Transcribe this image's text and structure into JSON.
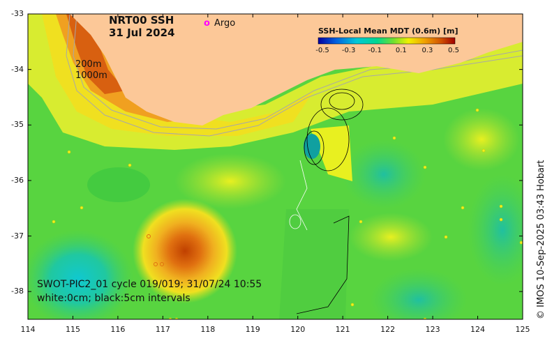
{
  "title": {
    "line1": "NRT00 SSH",
    "line2": "31 Jul 2024"
  },
  "legend": {
    "argo_symbol": "o",
    "argo_label": "Argo",
    "argo_color": "#ff00ff"
  },
  "depth_labels": [
    "200m",
    "1000m"
  ],
  "colorbar": {
    "title": "SSH-Local Mean MDT (0.6m) [m]",
    "ticks": [
      "-0.5",
      "-0.3",
      "-0.1",
      "0.1",
      "0.3",
      "0.5"
    ],
    "colors": [
      "#0000a0",
      "#0060e0",
      "#00c8d8",
      "#00d890",
      "#70e030",
      "#f0f000",
      "#f0a000",
      "#d05000",
      "#a00000"
    ]
  },
  "info": {
    "line1": "SWOT-PIC2_01 cycle 019/019; 31/07/24 10:55",
    "line2": "white:0cm; black:5cm intervals"
  },
  "credit": "© IMOS 10-Sep-2025 03:43 Hobart",
  "axes": {
    "x_ticks": [
      "114",
      "115",
      "116",
      "117",
      "118",
      "119",
      "120",
      "121",
      "122",
      "123",
      "124",
      "125"
    ],
    "y_ticks": [
      "-33",
      "-34",
      "-35",
      "-36",
      "-37",
      "-38"
    ],
    "x_range": [
      114,
      125
    ],
    "y_range": [
      -38.5,
      -33
    ]
  },
  "colors": {
    "land": "#fcc898",
    "frame": "#000000"
  }
}
